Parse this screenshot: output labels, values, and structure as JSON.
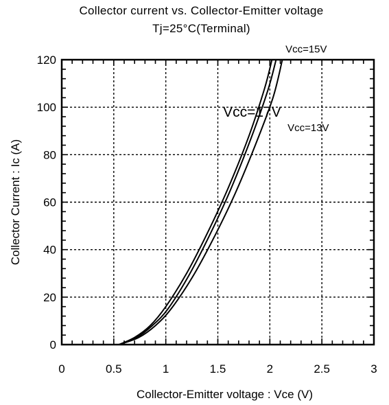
{
  "chart_data": {
    "type": "line",
    "title": "Collector current vs. Collector-Emitter voltage",
    "subtitle": "Tj=25°C(Terminal)",
    "xlabel": "Collector-Emitter voltage : Vce  (V)",
    "ylabel": "Collector Current : Ic  (A)",
    "xlim": [
      0,
      3
    ],
    "ylim": [
      0,
      120
    ],
    "x_ticks": [
      "0",
      "0.5",
      "1",
      "1.5",
      "2",
      "2.5",
      "3"
    ],
    "y_ticks": [
      "0",
      "20",
      "40",
      "60",
      "80",
      "100",
      "120"
    ],
    "grid": true,
    "series": [
      {
        "name": "Vcc=17V",
        "x": [
          0.55,
          0.7,
          0.85,
          1.0,
          1.2,
          1.4,
          1.6,
          1.8,
          1.95,
          2.02
        ],
        "y": [
          0,
          3,
          8,
          16,
          30,
          47,
          66,
          88,
          108,
          120
        ]
      },
      {
        "name": "Vcc=15V",
        "x": [
          0.55,
          0.72,
          0.87,
          1.02,
          1.22,
          1.42,
          1.62,
          1.82,
          1.98,
          2.06
        ],
        "y": [
          0,
          3,
          8,
          15,
          29,
          46,
          65,
          87,
          107,
          120
        ]
      },
      {
        "name": "Vcc=13V",
        "x": [
          0.55,
          0.74,
          0.9,
          1.05,
          1.25,
          1.45,
          1.66,
          1.86,
          2.03,
          2.12
        ],
        "y": [
          0,
          3,
          8,
          15,
          28,
          44,
          63,
          84,
          104,
          120
        ]
      }
    ],
    "annotations": [
      {
        "text": "Vcc=15V",
        "x": 2.15,
        "y": 123
      },
      {
        "text": "Vcc=17V",
        "x": 1.55,
        "y": 96
      },
      {
        "text": "Vcc=13V",
        "x": 2.17,
        "y": 90
      }
    ]
  }
}
